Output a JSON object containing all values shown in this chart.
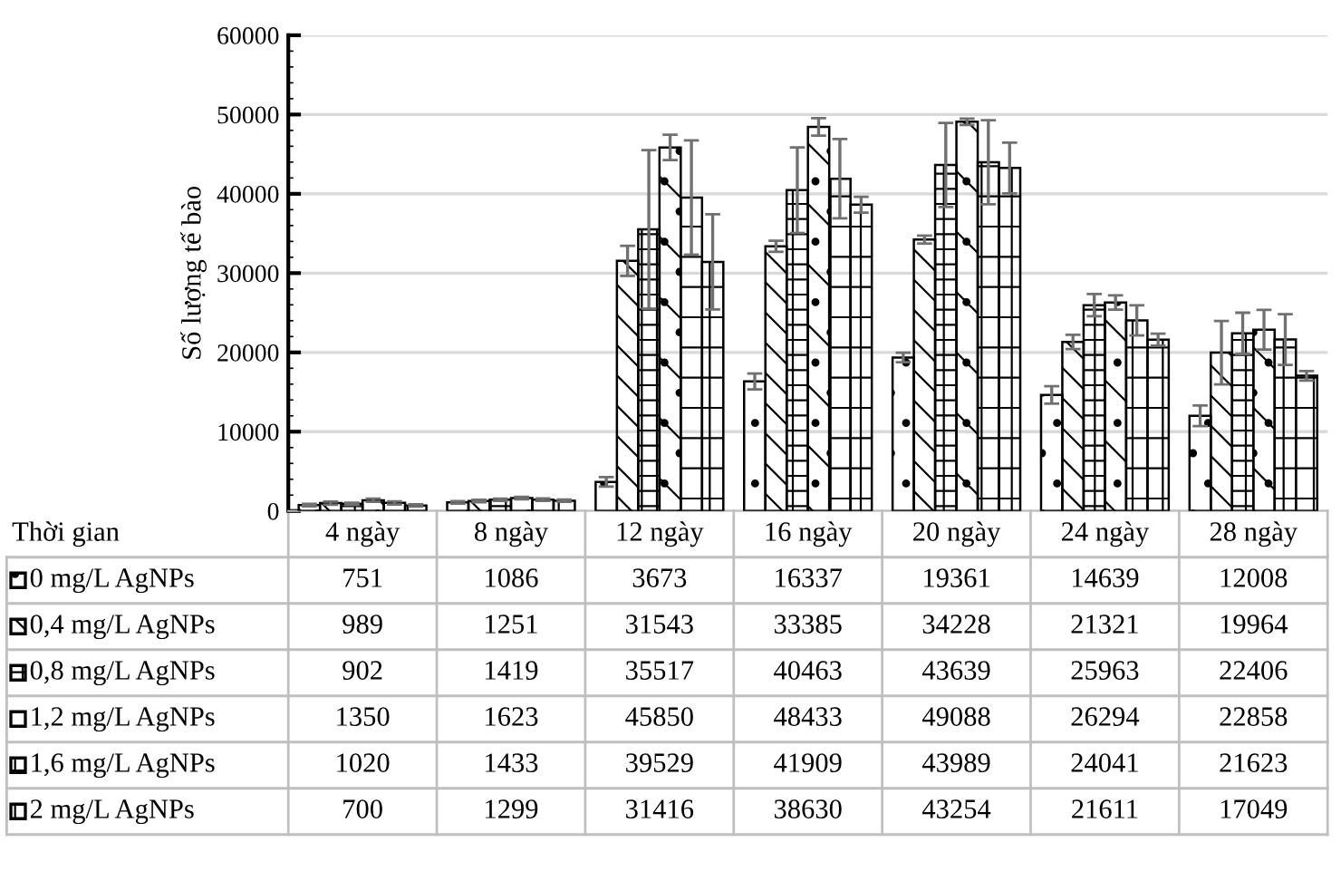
{
  "chart_data": {
    "type": "bar",
    "ylabel": "Số lượng tế bào",
    "xlabel": "Thời gian",
    "categories": [
      "4 ngày",
      "8 ngày",
      "12 ngày",
      "16 ngày",
      "20 ngày",
      "24 ngày",
      "28 ngày"
    ],
    "series": [
      {
        "name": "0 mg/L AgNPs",
        "color": "#000000",
        "values": [
          751,
          1086,
          3673,
          16337,
          19361,
          14639,
          12008
        ],
        "errors": [
          150,
          150,
          600,
          1000,
          600,
          1100,
          1300
        ]
      },
      {
        "name": "0,4 mg/L AgNPs",
        "color": "#000000",
        "values": [
          989,
          1251,
          31543,
          33385,
          34228,
          21321,
          19964
        ],
        "errors": [
          200,
          150,
          1900,
          700,
          500,
          900,
          4000
        ]
      },
      {
        "name": "0,8 mg/L AgNPs",
        "color": "#000000",
        "values": [
          902,
          1419,
          35517,
          40463,
          43639,
          25963,
          22406
        ],
        "errors": [
          150,
          150,
          10000,
          5400,
          5300,
          1400,
          2600
        ]
      },
      {
        "name": "1,2 mg/L AgNPs",
        "color": "#000000",
        "values": [
          1350,
          1623,
          45850,
          48433,
          49088,
          26294,
          22858
        ],
        "errors": [
          200,
          150,
          1600,
          1100,
          400,
          900,
          2500
        ]
      },
      {
        "name": "1,6 mg/L AgNPs",
        "color": "#000000",
        "values": [
          1020,
          1433,
          39529,
          41909,
          43989,
          24041,
          21623
        ],
        "errors": [
          200,
          150,
          7200,
          5000,
          5300,
          1900,
          3200
        ]
      },
      {
        "name": "2 mg/L AgNPs",
        "color": "#000000",
        "values": [
          700,
          1299,
          31416,
          38630,
          43254,
          21611,
          17049
        ],
        "errors": [
          150,
          150,
          6000,
          1000,
          3200,
          750,
          600
        ]
      }
    ],
    "ylim": [
      0,
      60000
    ],
    "yticks": [
      0,
      10000,
      20000,
      30000,
      40000,
      50000,
      60000
    ],
    "grid": "y",
    "legend": "bottom",
    "data_labels": true
  }
}
